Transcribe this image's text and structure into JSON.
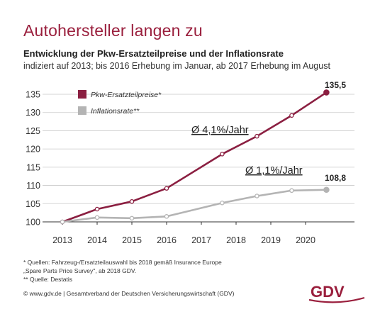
{
  "headline": "Autohersteller langen zu",
  "chart_data": {
    "type": "line",
    "title": "Entwicklung der Pkw-Ersatzteilpreise und der Inflationsrate",
    "subtitle": "indiziert auf 2013; bis 2016 Erhebung im Januar, ab 2017 Erhebung im August",
    "x_ticks": [
      "2013",
      "2014",
      "2015",
      "2016",
      "2017",
      "2018",
      "2019",
      "2020"
    ],
    "ylim": [
      100,
      135
    ],
    "y_ticks": [
      "100",
      "105",
      "110",
      "115",
      "120",
      "125",
      "130",
      "135"
    ],
    "grid": true,
    "legend_position": "top-left",
    "series": [
      {
        "name": "Pkw-Ersatzteilpreise*",
        "color": "#8b1f41",
        "x": [
          2013,
          2014,
          2015,
          2016,
          2017.6,
          2018.6,
          2019.6,
          2020.6
        ],
        "values": [
          100,
          103.5,
          105.6,
          109.2,
          118.6,
          123.5,
          129.2,
          135.5
        ]
      },
      {
        "name": "Inflationsrate**",
        "color": "#b4b4b4",
        "x": [
          2013,
          2014,
          2015,
          2016,
          2017.6,
          2018.6,
          2019.6,
          2020.6
        ],
        "values": [
          100,
          101.2,
          101.0,
          101.5,
          105.2,
          107.1,
          108.6,
          108.8
        ]
      }
    ],
    "annotations": {
      "parts_growth": "Ø 4,1%/Jahr",
      "inflation_growth": "Ø 1,1%/Jahr",
      "parts_end_label": "135,5",
      "inflation_end_label": "108,8"
    }
  },
  "footnotes": {
    "line1": "* Quellen: Fahrzeug-/Ersatzteilauswahl bis 2018 gemäß Insurance Europe",
    "line2": "„Spare Parts Price Survey\", ab 2018 GDV.",
    "line3": "** Quelle: Destatis"
  },
  "footer": "© www.gdv.de | Gesamtverband der Deutschen Versicherungswirtschaft (GDV)",
  "logo": {
    "text": "GDV",
    "color": "#9a1f3d"
  }
}
